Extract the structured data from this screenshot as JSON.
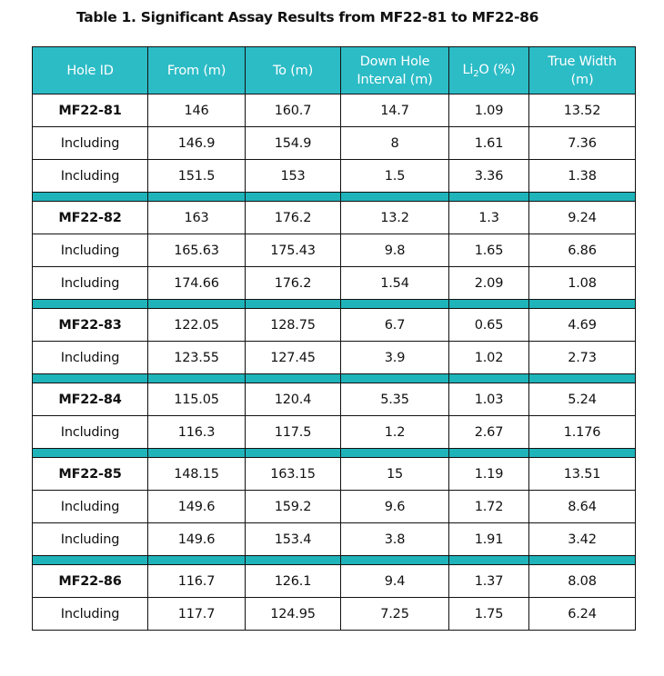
{
  "caption": "Table 1. Significant Assay Results from MF22-81 to MF22-86",
  "headers": {
    "hole_id": "Hole ID",
    "from": "From (m)",
    "to": "To (m)",
    "interval_line1": "Down Hole",
    "interval_line2": "Interval (m)",
    "li_pre": "Li",
    "li_sub": "2",
    "li_post": "O (%)",
    "true_width_line1": "True Width",
    "true_width_line2": "(m)"
  },
  "colors": {
    "header_bg": "#2cbcc6",
    "spacer_bg": "#1fb3ba"
  },
  "rows": [
    {
      "hole": "MF22-81",
      "from": "146",
      "to": "160.7",
      "interval": "14.7",
      "li2o": "1.09",
      "true_width": "13.52"
    },
    {
      "hole": "Including",
      "from": "146.9",
      "to": "154.9",
      "interval": "8",
      "li2o": "1.61",
      "true_width": "7.36"
    },
    {
      "hole": "Including",
      "from": "151.5",
      "to": "153",
      "interval": "1.5",
      "li2o": "3.36",
      "true_width": "1.38"
    },
    {
      "hole": "MF22-82",
      "from": "163",
      "to": "176.2",
      "interval": "13.2",
      "li2o": "1.3",
      "true_width": "9.24"
    },
    {
      "hole": "Including",
      "from": "165.63",
      "to": "175.43",
      "interval": "9.8",
      "li2o": "1.65",
      "true_width": "6.86"
    },
    {
      "hole": "Including",
      "from": "174.66",
      "to": "176.2",
      "interval": "1.54",
      "li2o": "2.09",
      "true_width": "1.08"
    },
    {
      "hole": "MF22-83",
      "from": "122.05",
      "to": "128.75",
      "interval": "6.7",
      "li2o": "0.65",
      "true_width": "4.69"
    },
    {
      "hole": "Including",
      "from": "123.55",
      "to": "127.45",
      "interval": "3.9",
      "li2o": "1.02",
      "true_width": "2.73"
    },
    {
      "hole": "MF22-84",
      "from": "115.05",
      "to": "120.4",
      "interval": "5.35",
      "li2o": "1.03",
      "true_width": "5.24"
    },
    {
      "hole": "Including",
      "from": "116.3",
      "to": "117.5",
      "interval": "1.2",
      "li2o": "2.67",
      "true_width": "1.176"
    },
    {
      "hole": "MF22-85",
      "from": "148.15",
      "to": "163.15",
      "interval": "15",
      "li2o": "1.19",
      "true_width": "13.51"
    },
    {
      "hole": "Including",
      "from": "149.6",
      "to": "159.2",
      "interval": "9.6",
      "li2o": "1.72",
      "true_width": "8.64"
    },
    {
      "hole": "Including",
      "from": "149.6",
      "to": "153.4",
      "interval": "3.8",
      "li2o": "1.91",
      "true_width": "3.42"
    },
    {
      "hole": "MF22-86",
      "from": "116.7",
      "to": "126.1",
      "interval": "9.4",
      "li2o": "1.37",
      "true_width": "8.08"
    },
    {
      "hole": "Including",
      "from": "117.7",
      "to": "124.95",
      "interval": "7.25",
      "li2o": "1.75",
      "true_width": "6.24"
    }
  ]
}
